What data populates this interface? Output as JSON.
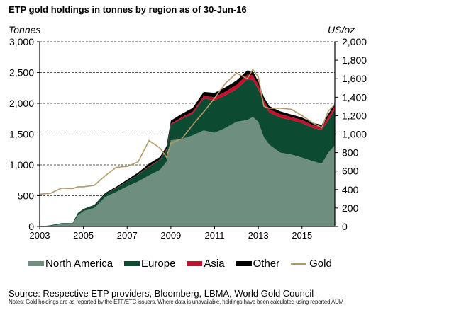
{
  "chart_data": {
    "type": "area",
    "title": "ETP gold holdings in tonnes by region as of 30-Jun-16",
    "ylabel": "Tonnes",
    "ylabel_right": "US/oz",
    "ylim": [
      0,
      3000
    ],
    "ylim_right": [
      0,
      2000
    ],
    "xlim": [
      2003,
      2016.5
    ],
    "grid": true,
    "legend_position": "bottom",
    "yticks": [
      "0",
      "500",
      "1,000",
      "1,500",
      "2,000",
      "2,500",
      "3,000"
    ],
    "yticks_right": [
      "0",
      "200",
      "400",
      "600",
      "800",
      "1,000",
      "1,200",
      "1,400",
      "1,600",
      "1,800",
      "2,000"
    ],
    "xticks": [
      "2003",
      "2005",
      "2007",
      "2009",
      "2011",
      "2013",
      "2015"
    ],
    "x": [
      2003.0,
      2003.5,
      2004.0,
      2004.5,
      2004.75,
      2005.0,
      2005.5,
      2006.0,
      2006.5,
      2007.0,
      2007.5,
      2008.0,
      2008.5,
      2008.8,
      2009.0,
      2009.5,
      2010.0,
      2010.5,
      2011.0,
      2011.5,
      2012.0,
      2012.5,
      2012.75,
      2013.0,
      2013.25,
      2013.5,
      2014.0,
      2014.5,
      2015.0,
      2015.5,
      2015.9,
      2016.2,
      2016.5
    ],
    "series": [
      {
        "name": "North America",
        "color": "#6e8f80",
        "type": "area",
        "values": [
          0,
          10,
          40,
          40,
          180,
          250,
          300,
          480,
          560,
          650,
          730,
          830,
          920,
          1050,
          1400,
          1420,
          1480,
          1560,
          1520,
          1600,
          1700,
          1730,
          1780,
          1700,
          1450,
          1330,
          1200,
          1170,
          1120,
          1060,
          1020,
          1200,
          1320
        ]
      },
      {
        "name": "Europe",
        "color": "#0d4a32",
        "type": "area",
        "values": [
          0,
          10,
          15,
          15,
          40,
          30,
          40,
          50,
          60,
          80,
          110,
          140,
          160,
          190,
          250,
          330,
          350,
          520,
          530,
          530,
          530,
          660,
          600,
          530,
          540,
          520,
          570,
          560,
          560,
          540,
          550,
          520,
          580
        ]
      },
      {
        "name": "Asia",
        "color": "#c8102e",
        "type": "area",
        "values": [
          0,
          0,
          0,
          0,
          0,
          0,
          0,
          0,
          5,
          5,
          5,
          10,
          10,
          15,
          20,
          25,
          35,
          40,
          50,
          60,
          70,
          75,
          75,
          70,
          60,
          55,
          55,
          50,
          50,
          45,
          45,
          60,
          60
        ]
      },
      {
        "name": "Other",
        "color": "#000000",
        "type": "area",
        "values": [
          0,
          0,
          0,
          0,
          0,
          5,
          10,
          15,
          20,
          25,
          30,
          40,
          40,
          45,
          50,
          55,
          60,
          65,
          70,
          70,
          70,
          70,
          65,
          60,
          55,
          50,
          45,
          40,
          40,
          35,
          35,
          45,
          45
        ]
      },
      {
        "name": "Gold",
        "color": "#b39b68",
        "type": "line",
        "axis": "right",
        "values": [
          350,
          360,
          415,
          410,
          430,
          430,
          445,
          550,
          640,
          650,
          700,
          930,
          850,
          750,
          900,
          950,
          1100,
          1240,
          1390,
          1550,
          1660,
          1600,
          1700,
          1620,
          1300,
          1280,
          1280,
          1270,
          1200,
          1120,
          1070,
          1250,
          1320
        ]
      }
    ]
  },
  "legend": {
    "items": [
      {
        "label": "North America",
        "color": "#6e8f80",
        "kind": "area"
      },
      {
        "label": "Europe",
        "color": "#0d4a32",
        "kind": "area"
      },
      {
        "label": "Asia",
        "color": "#c8102e",
        "kind": "area"
      },
      {
        "label": "Other",
        "color": "#000000",
        "kind": "area"
      },
      {
        "label": "Gold",
        "color": "#b39b68",
        "kind": "line"
      }
    ]
  },
  "footer": {
    "source": "Source: Respective ETP providers, Bloomberg, LBMA, World Gold Council",
    "notes": "Notes: Gold holdings are as reported by the ETF/ETC issuers. Where data is unavailable, holdings have been calculated using reported AUM"
  }
}
